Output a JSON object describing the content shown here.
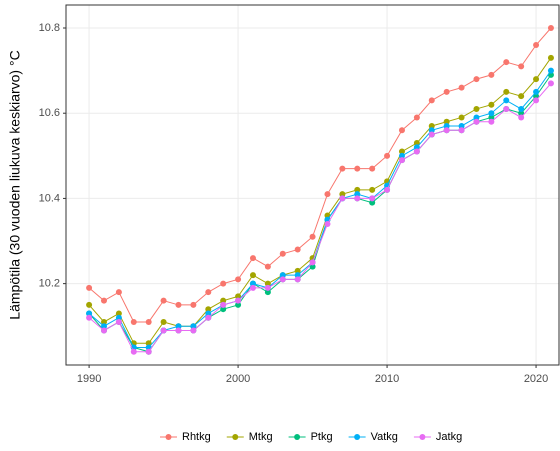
{
  "chart_data": {
    "type": "line",
    "ylabel": "Lämpötila (30 vuoden liukuva keskiarvo) °C",
    "x": [
      1990,
      1991,
      1992,
      1993,
      1994,
      1995,
      1996,
      1997,
      1998,
      1999,
      2000,
      2001,
      2002,
      2003,
      2004,
      2005,
      2006,
      2007,
      2008,
      2009,
      2010,
      2011,
      2012,
      2013,
      2014,
      2015,
      2016,
      2017,
      2018,
      2019,
      2020,
      2021
    ],
    "xlim": [
      1988.45,
      2021.54
    ],
    "xticks": [
      1990,
      2000,
      2010,
      2020
    ],
    "ylim": [
      10.009,
      10.854
    ],
    "yticks": [
      10.2,
      10.4,
      10.6,
      10.8
    ],
    "grid": true,
    "legend": "bottom",
    "series": [
      {
        "name": "Rhtkg",
        "color": "#F8766D",
        "values": [
          10.19,
          10.16,
          10.18,
          10.11,
          10.11,
          10.16,
          10.15,
          10.15,
          10.18,
          10.2,
          10.21,
          10.26,
          10.24,
          10.27,
          10.28,
          10.31,
          10.41,
          10.47,
          10.47,
          10.47,
          10.5,
          10.56,
          10.59,
          10.63,
          10.65,
          10.66,
          10.68,
          10.69,
          10.72,
          10.71,
          10.76,
          10.8
        ]
      },
      {
        "name": "Mtkg",
        "color": "#A3A500",
        "values": [
          10.15,
          10.11,
          10.13,
          10.06,
          10.06,
          10.11,
          10.1,
          10.1,
          10.14,
          10.16,
          10.17,
          10.22,
          10.2,
          10.22,
          10.23,
          10.26,
          10.36,
          10.41,
          10.42,
          10.42,
          10.44,
          10.51,
          10.53,
          10.57,
          10.58,
          10.59,
          10.61,
          10.62,
          10.65,
          10.64,
          10.68,
          10.73
        ]
      },
      {
        "name": "Ptkg",
        "color": "#00BF7D",
        "values": [
          10.13,
          10.09,
          10.11,
          10.05,
          10.04,
          10.09,
          10.09,
          10.09,
          10.12,
          10.14,
          10.15,
          10.2,
          10.18,
          10.21,
          10.21,
          10.24,
          10.35,
          10.4,
          10.4,
          10.39,
          10.42,
          10.49,
          10.51,
          10.55,
          10.56,
          10.56,
          10.58,
          10.59,
          10.61,
          10.6,
          10.64,
          10.69
        ]
      },
      {
        "name": "Vatkg",
        "color": "#00B0F6",
        "values": [
          10.13,
          10.1,
          10.12,
          10.05,
          10.05,
          10.09,
          10.1,
          10.1,
          10.13,
          10.15,
          10.16,
          10.2,
          10.19,
          10.22,
          10.22,
          10.25,
          10.35,
          10.4,
          10.41,
          10.4,
          10.43,
          10.5,
          10.52,
          10.56,
          10.57,
          10.57,
          10.59,
          10.6,
          10.63,
          10.61,
          10.65,
          10.7
        ]
      },
      {
        "name": "Jatkg",
        "color": "#E76BF3",
        "values": [
          10.12,
          10.09,
          10.11,
          10.04,
          10.04,
          10.09,
          10.09,
          10.09,
          10.12,
          10.15,
          10.16,
          10.19,
          10.19,
          10.21,
          10.21,
          10.25,
          10.34,
          10.4,
          10.4,
          10.4,
          10.42,
          10.49,
          10.51,
          10.55,
          10.56,
          10.56,
          10.58,
          10.58,
          10.61,
          10.59,
          10.63,
          10.67
        ]
      }
    ]
  }
}
